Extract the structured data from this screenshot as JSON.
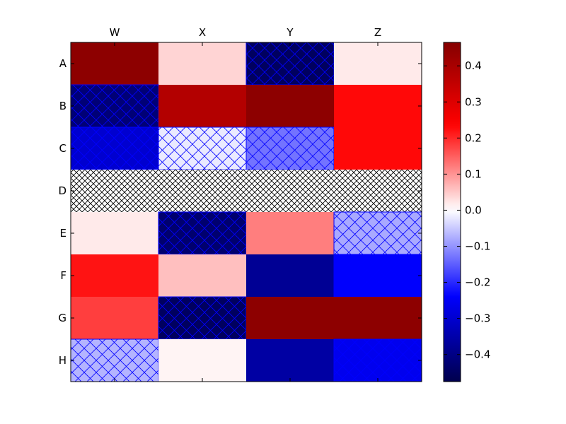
{
  "chart_data": {
    "type": "heatmap",
    "rows": [
      "A",
      "B",
      "C",
      "D",
      "E",
      "F",
      "G",
      "H"
    ],
    "columns": [
      "W",
      "X",
      "Y",
      "Z"
    ],
    "values": [
      [
        0.45,
        0.04,
        -0.45,
        0.02
      ],
      [
        -0.42,
        0.38,
        0.45,
        0.23
      ],
      [
        -0.3,
        -0.02,
        -0.13,
        0.23
      ],
      [
        null,
        null,
        null,
        null
      ],
      [
        0.02,
        -0.43,
        0.12,
        -0.08
      ],
      [
        0.22,
        0.06,
        -0.38,
        -0.24
      ],
      [
        0.18,
        -0.45,
        0.45,
        0.45
      ],
      [
        -0.07,
        0.01,
        -0.36,
        -0.26
      ]
    ],
    "hatched_cells": [
      [
        false,
        false,
        true,
        false
      ],
      [
        true,
        false,
        false,
        false
      ],
      [
        true,
        true,
        true,
        false
      ],
      [
        true,
        true,
        true,
        true
      ],
      [
        false,
        true,
        false,
        true
      ],
      [
        false,
        false,
        false,
        true
      ],
      [
        false,
        true,
        false,
        false
      ],
      [
        true,
        false,
        false,
        true
      ]
    ],
    "colormap": "seismic",
    "colorbar": {
      "min": -0.475,
      "max": 0.465,
      "ticks": [
        -0.4,
        -0.3,
        -0.2,
        -0.1,
        0.0,
        0.1,
        0.2,
        0.3,
        0.4
      ],
      "tick_labels": [
        "−0.4",
        "−0.3",
        "−0.2",
        "−0.1",
        "0.0",
        "0.1",
        "0.2",
        "0.3",
        "0.4"
      ]
    },
    "column_labels_position": "top",
    "grid": false
  }
}
